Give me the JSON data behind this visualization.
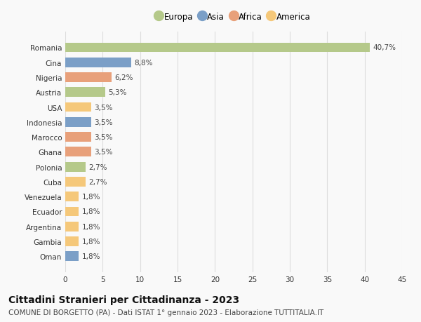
{
  "categories": [
    "Oman",
    "Gambia",
    "Argentina",
    "Ecuador",
    "Venezuela",
    "Cuba",
    "Polonia",
    "Ghana",
    "Marocco",
    "Indonesia",
    "USA",
    "Austria",
    "Nigeria",
    "Cina",
    "Romania"
  ],
  "values": [
    1.8,
    1.8,
    1.8,
    1.8,
    1.8,
    2.7,
    2.7,
    3.5,
    3.5,
    3.5,
    3.5,
    5.3,
    6.2,
    8.8,
    40.7
  ],
  "labels": [
    "1,8%",
    "1,8%",
    "1,8%",
    "1,8%",
    "1,8%",
    "2,7%",
    "2,7%",
    "3,5%",
    "3,5%",
    "3,5%",
    "3,5%",
    "5,3%",
    "6,2%",
    "8,8%",
    "40,7%"
  ],
  "colors": [
    "#7b9fc7",
    "#f5c87a",
    "#f5c87a",
    "#f5c87a",
    "#f5c87a",
    "#f5c87a",
    "#b5c98a",
    "#e8a07a",
    "#e8a07a",
    "#7b9fc7",
    "#f5c87a",
    "#b5c98a",
    "#e8a07a",
    "#7b9fc7",
    "#b5c98a"
  ],
  "legend": [
    {
      "label": "Europa",
      "color": "#b5c98a"
    },
    {
      "label": "Asia",
      "color": "#7b9fc7"
    },
    {
      "label": "Africa",
      "color": "#e8a07a"
    },
    {
      "label": "America",
      "color": "#f5c87a"
    }
  ],
  "xlim": [
    0,
    45
  ],
  "xticks": [
    0,
    5,
    10,
    15,
    20,
    25,
    30,
    35,
    40,
    45
  ],
  "title": "Cittadini Stranieri per Cittadinanza - 2023",
  "subtitle": "COMUNE DI BORGETTO (PA) - Dati ISTAT 1° gennaio 2023 - Elaborazione TUTTITALIA.IT",
  "bg_color": "#f9f9f9",
  "grid_color": "#dddddd",
  "bar_height": 0.65,
  "label_fontsize": 7.5,
  "tick_fontsize": 7.5,
  "title_fontsize": 10,
  "subtitle_fontsize": 7.5
}
